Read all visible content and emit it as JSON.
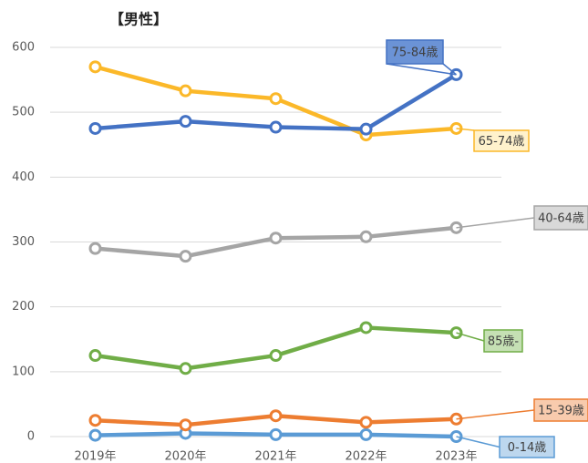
{
  "chart_data": {
    "type": "line",
    "title": "【男性】",
    "categories": [
      "2019年",
      "2020年",
      "2021年",
      "2022年",
      "2023年"
    ],
    "series": [
      {
        "name": "0-14歳",
        "color": "#5b9bd5",
        "fill": "#bdd7ee",
        "values": [
          2,
          5,
          3,
          3,
          0
        ]
      },
      {
        "name": "15-39歳",
        "color": "#ed7d31",
        "fill": "#f8cbad",
        "values": [
          25,
          18,
          32,
          22,
          27
        ]
      },
      {
        "name": "85歳-",
        "color": "#70ad47",
        "fill": "#c5e0b4",
        "values": [
          125,
          105,
          125,
          168,
          160
        ]
      },
      {
        "name": "40-64歳",
        "color": "#a5a5a5",
        "fill": "#d9d9d9",
        "values": [
          290,
          278,
          306,
          308,
          322
        ]
      },
      {
        "name": "65-74歳",
        "color": "#fbb829",
        "fill": "#fff2cc",
        "values": [
          570,
          533,
          521,
          465,
          475
        ]
      },
      {
        "name": "75-84歳",
        "color": "#4472c4",
        "fill": "#6b93d6",
        "values": [
          475,
          486,
          477,
          474,
          558
        ]
      }
    ],
    "ylim": [
      0,
      600
    ],
    "yticks": [
      0,
      100,
      200,
      300,
      400,
      500,
      600
    ],
    "grid": true
  }
}
